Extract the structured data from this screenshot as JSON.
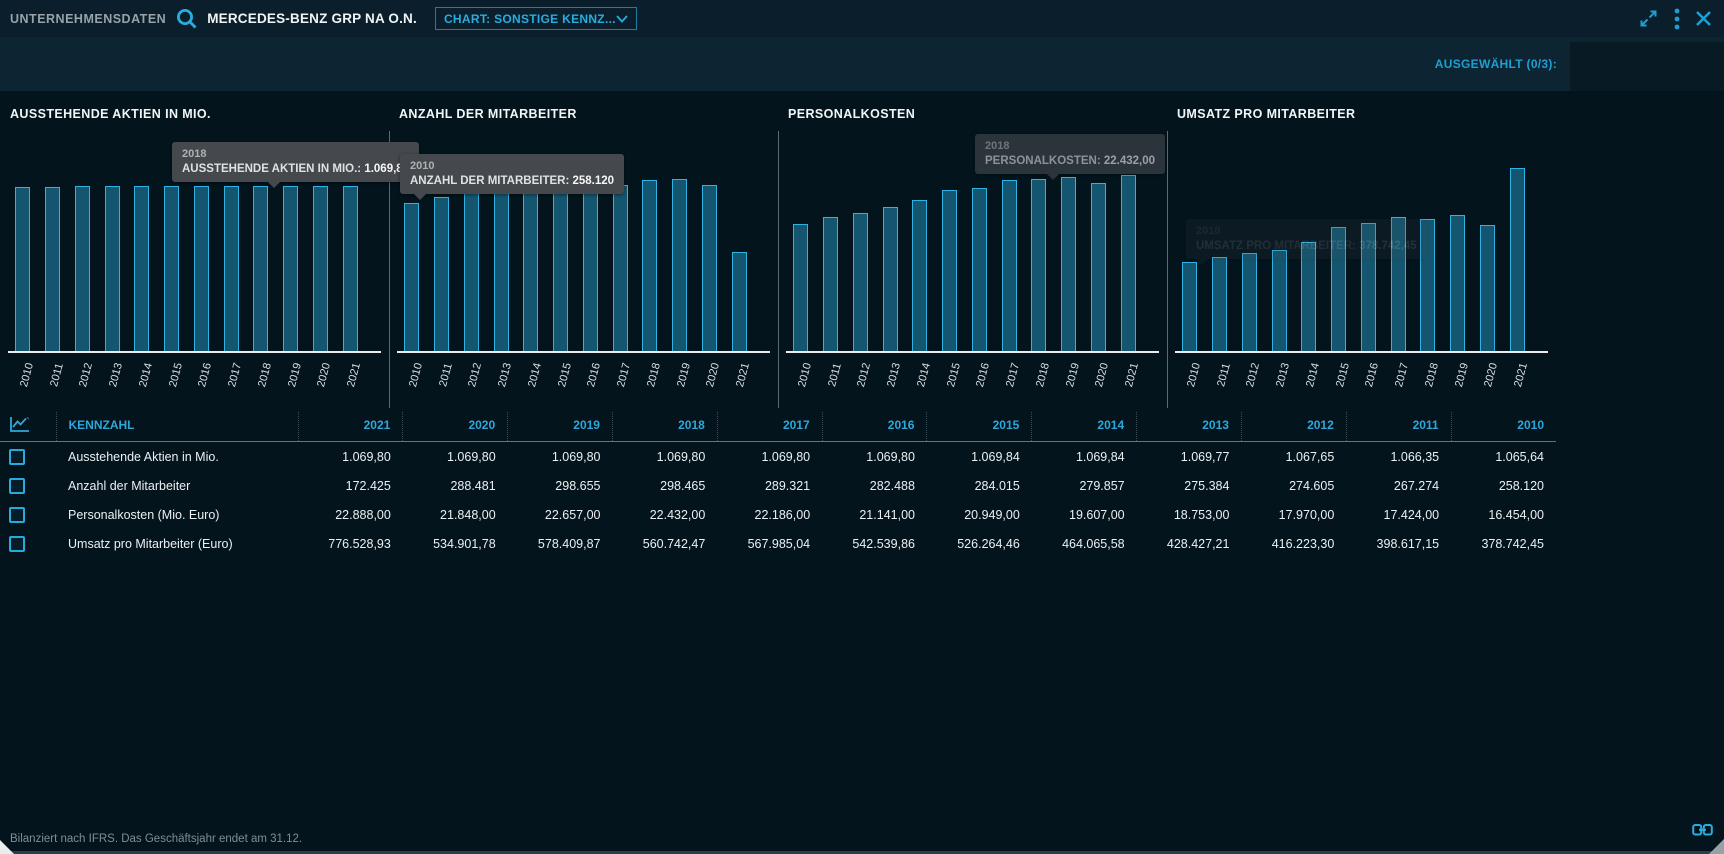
{
  "topbar": {
    "title": "UNTERNEHMENSDATEN",
    "company": "MERCEDES-BENZ GRP NA O.N.",
    "chart_select_label": "CHART: SONSTIGE KENNZ..."
  },
  "selection_bar": {
    "label": "AUSGEWÄHLT (0/3):"
  },
  "chart_data": [
    {
      "type": "bar",
      "title": "AUSSTEHENDE AKTIEN IN MIO.",
      "categories": [
        "2010",
        "2011",
        "2012",
        "2013",
        "2014",
        "2015",
        "2016",
        "2017",
        "2018",
        "2019",
        "2020",
        "2021"
      ],
      "values": [
        1065.64,
        1066.35,
        1067.65,
        1069.77,
        1069.84,
        1069.84,
        1069.8,
        1069.8,
        1069.8,
        1069.8,
        1069.8,
        1069.8
      ],
      "xlabel": "",
      "ylabel": "",
      "yaxis_visible": false,
      "grid": false,
      "legend": false
    },
    {
      "type": "bar",
      "title": "ANZAHL DER MITARBEITER",
      "categories": [
        "2010",
        "2011",
        "2012",
        "2013",
        "2014",
        "2015",
        "2016",
        "2017",
        "2018",
        "2019",
        "2020",
        "2021"
      ],
      "values": [
        258120,
        267274,
        274605,
        275384,
        279857,
        284015,
        282488,
        289321,
        298465,
        298655,
        288481,
        172425
      ],
      "xlabel": "",
      "ylabel": "",
      "yaxis_visible": false,
      "grid": false,
      "legend": false
    },
    {
      "type": "bar",
      "title": "PERSONALKOSTEN",
      "categories": [
        "2010",
        "2011",
        "2012",
        "2013",
        "2014",
        "2015",
        "2016",
        "2017",
        "2018",
        "2019",
        "2020",
        "2021"
      ],
      "values": [
        16454,
        17424,
        17970,
        18753,
        19607,
        20949,
        21141,
        22186,
        22432,
        22657,
        21848,
        22888
      ],
      "xlabel": "",
      "ylabel": "",
      "yaxis_visible": false,
      "grid": false,
      "legend": false
    },
    {
      "type": "bar",
      "title": "UMSATZ PRO MITARBEITER",
      "categories": [
        "2010",
        "2011",
        "2012",
        "2013",
        "2014",
        "2015",
        "2016",
        "2017",
        "2018",
        "2019",
        "2020",
        "2021"
      ],
      "values": [
        378742.45,
        398617.15,
        416223.3,
        428427.21,
        464065.58,
        526264.46,
        542539.86,
        567985.04,
        560742.47,
        578409.87,
        534901.78,
        776528.93
      ],
      "xlabel": "",
      "ylabel": "",
      "yaxis_visible": false,
      "grid": false,
      "legend": false
    }
  ],
  "tooltips": [
    {
      "year": "2018",
      "label": "AUSSTEHENDE AKTIEN IN MIO.:",
      "value": "1.069,80"
    },
    {
      "year": "2010",
      "label": "ANZAHL DER MITARBEITER:",
      "value": "258.120"
    },
    {
      "year": "2018",
      "label": "PERSONALKOSTEN:",
      "value": "22.432,00"
    },
    {
      "year": "2010",
      "label": "UMSATZ PRO MITARBEITER:",
      "value": "378.742,45"
    }
  ],
  "table": {
    "header_metric": "KENNZAHL",
    "years": [
      "2021",
      "2020",
      "2019",
      "2018",
      "2017",
      "2016",
      "2015",
      "2014",
      "2013",
      "2012",
      "2011",
      "2010"
    ],
    "rows": [
      {
        "label": "Ausstehende Aktien in Mio.",
        "values": [
          "1.069,80",
          "1.069,80",
          "1.069,80",
          "1.069,80",
          "1.069,80",
          "1.069,80",
          "1.069,84",
          "1.069,84",
          "1.069,77",
          "1.067,65",
          "1.066,35",
          "1.065,64"
        ]
      },
      {
        "label": "Anzahl der Mitarbeiter",
        "values": [
          "172.425",
          "288.481",
          "298.655",
          "298.465",
          "289.321",
          "282.488",
          "284.015",
          "279.857",
          "275.384",
          "274.605",
          "267.274",
          "258.120"
        ]
      },
      {
        "label": "Personalkosten (Mio. Euro)",
        "values": [
          "22.888,00",
          "21.848,00",
          "22.657,00",
          "22.432,00",
          "22.186,00",
          "21.141,00",
          "20.949,00",
          "19.607,00",
          "18.753,00",
          "17.970,00",
          "17.424,00",
          "16.454,00"
        ]
      },
      {
        "label": "Umsatz pro Mitarbeiter (Euro)",
        "values": [
          "776.528,93",
          "534.901,78",
          "578.409,87",
          "560.742,47",
          "567.985,04",
          "542.539,86",
          "526.264,46",
          "464.065,58",
          "428.427,21",
          "416.223,30",
          "398.617,15",
          "378.742,45"
        ]
      }
    ]
  },
  "footer": {
    "note": "Bilanziert nach IFRS. Das Geschäftsjahr endet am 31.12."
  },
  "colors": {
    "accent": "#29ACE0",
    "bar_fill": "#14566F",
    "bar_stroke": "#30B2E4",
    "tooltip_bg": "#45484C",
    "band_bg": "#0D2432",
    "page_bg": "#03141D"
  }
}
